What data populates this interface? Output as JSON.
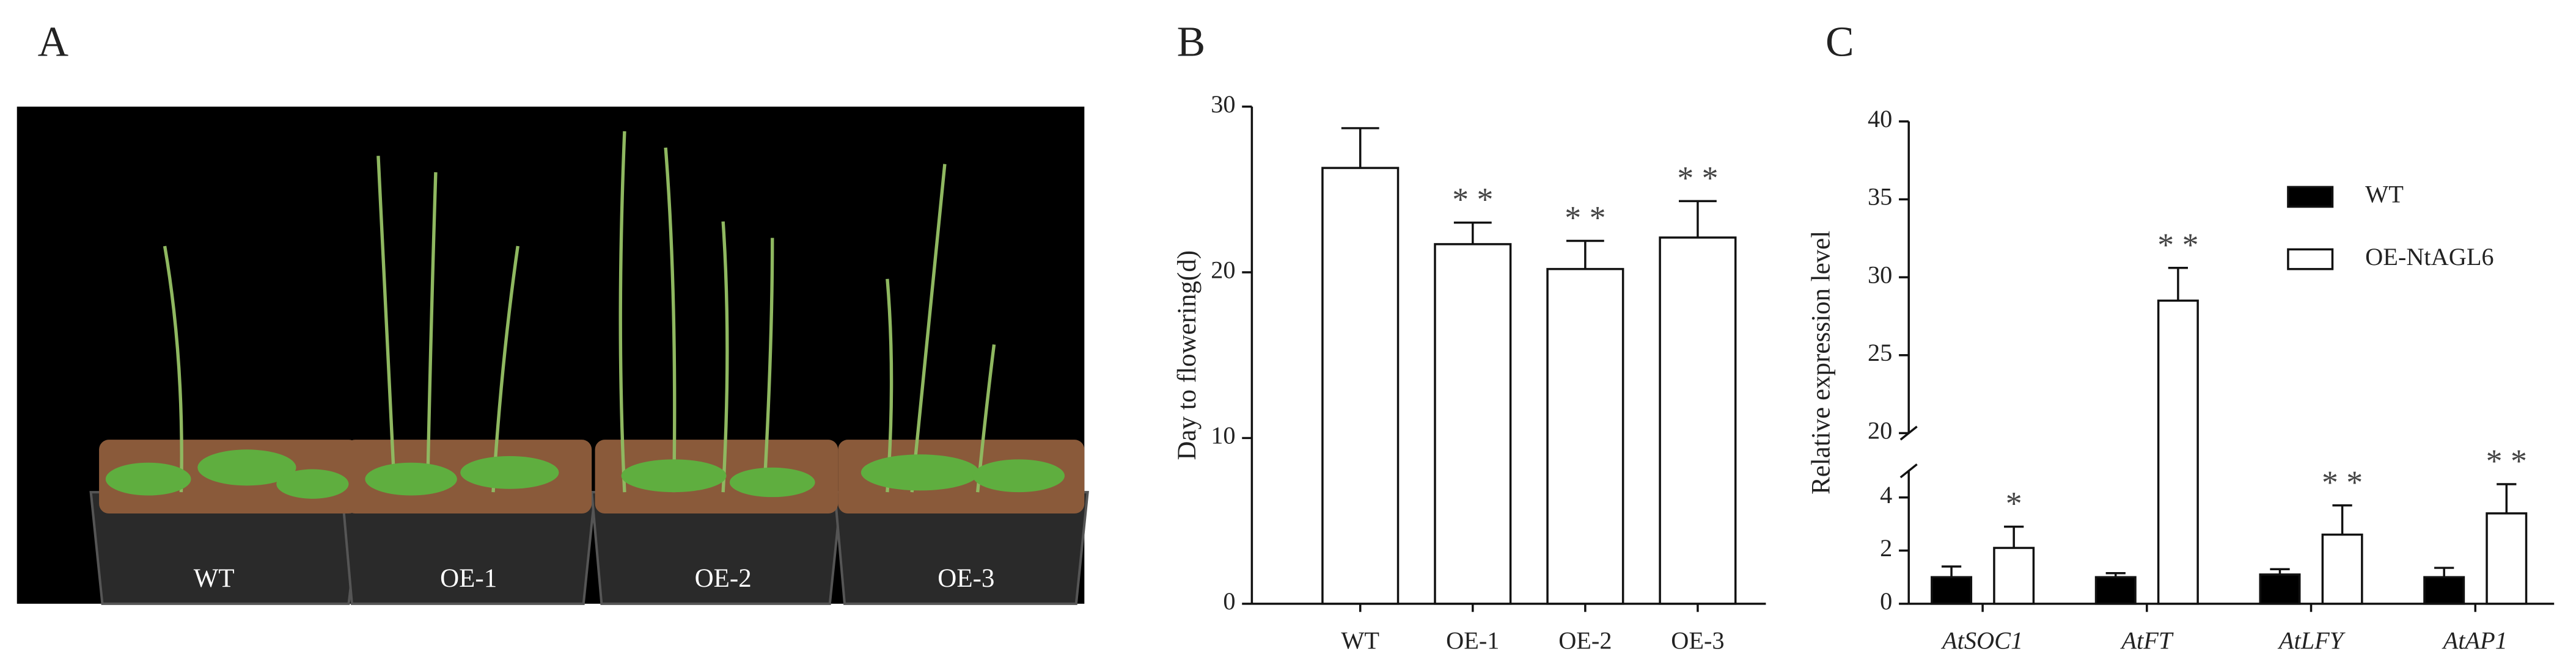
{
  "photo": {
    "panel_label": "A",
    "labels": [
      "WT",
      "OE-1",
      "OE-2",
      "OE-3"
    ]
  },
  "chart_data": [
    {
      "type": "bar",
      "panel_label": "B",
      "ylabel": "Day to flowering(d)",
      "categories": [
        "WT",
        "OE-1",
        "OE-2",
        "OE-3"
      ],
      "values": [
        26.3,
        21.7,
        20.2,
        22.1
      ],
      "errors": [
        2.4,
        1.3,
        1.7,
        2.2
      ],
      "significance": [
        null,
        "* *",
        "* *",
        "* *"
      ],
      "color": "#ffffff",
      "ylim": [
        0,
        30
      ],
      "yticks": [
        0,
        10,
        20,
        30
      ]
    },
    {
      "type": "bar",
      "panel_label": "C",
      "ylabel": "Relative expression level",
      "categories": [
        "AtSOC1",
        "AtFT",
        "AtLFY",
        "AtAP1"
      ],
      "series": [
        {
          "name": "WT",
          "color": "#000000",
          "values": [
            1.0,
            1.0,
            1.1,
            1.0
          ],
          "errors": [
            0.4,
            0.15,
            0.2,
            0.35
          ],
          "significance": [
            null,
            null,
            null,
            null
          ]
        },
        {
          "name": "OE-NtAGL6",
          "color": "#ffffff",
          "values": [
            2.1,
            28.5,
            2.6,
            3.4
          ],
          "errors": [
            0.8,
            2.1,
            1.1,
            1.1
          ],
          "significance": [
            "*",
            "* *",
            "* *",
            "* *"
          ]
        }
      ],
      "ylim": [
        0,
        40
      ],
      "ybreak": [
        5,
        20
      ],
      "yticks": [
        0,
        2,
        4,
        20,
        25,
        30,
        35,
        40
      ]
    }
  ]
}
